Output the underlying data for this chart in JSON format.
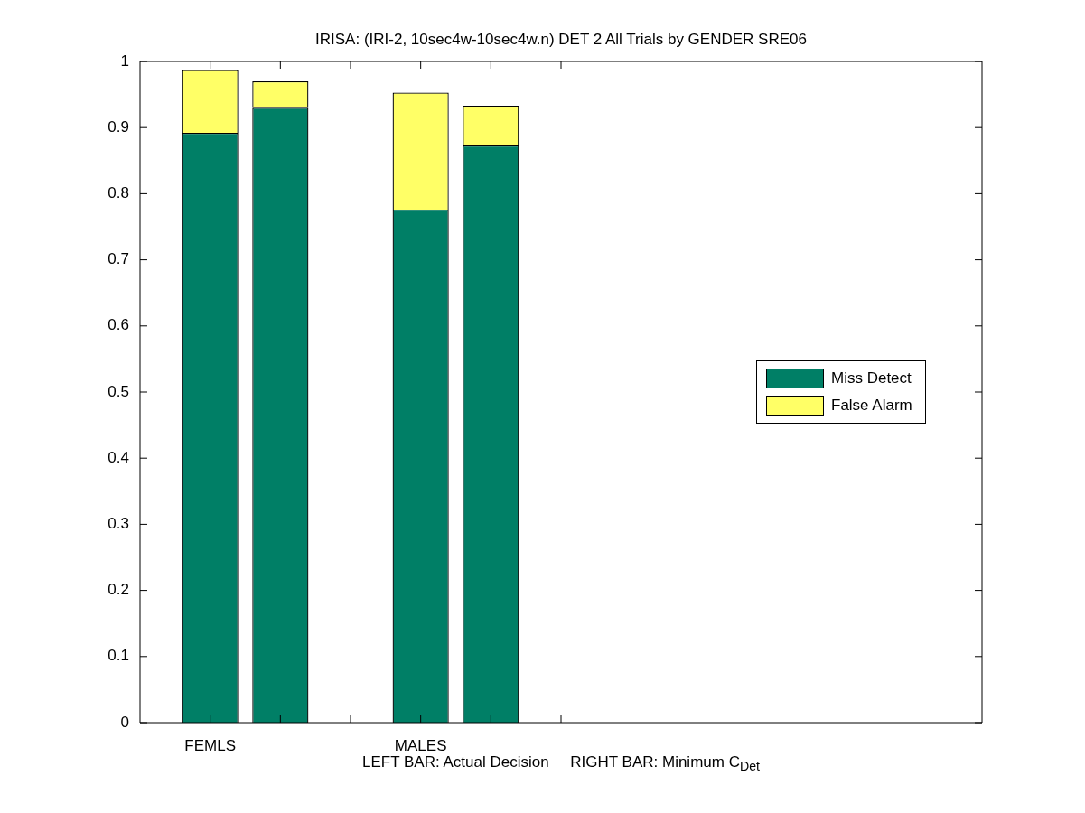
{
  "chart_data": {
    "type": "bar",
    "title": "IRISA: (IRI-2, 10sec4w-10sec4w.n) DET 2 All Trials by GENDER SRE06",
    "xlabel": "LEFT BAR: Actual Decision     RIGHT BAR: Minimum C$_{Det}$",
    "categories": [
      "FEMLS",
      null,
      null,
      "MALES",
      null,
      null
    ],
    "stacked": true,
    "series": [
      {
        "name": "Miss Detect",
        "color": "#007f66",
        "values": [
          0.892,
          0.93,
          null,
          0.776,
          0.873,
          null
        ]
      },
      {
        "name": "False Alarm",
        "color": "#ffff66",
        "values": [
          0.095,
          0.04,
          null,
          0.177,
          0.06,
          null
        ]
      }
    ],
    "ylim": [
      0,
      1
    ],
    "yticks": [
      0,
      0.1,
      0.2,
      0.3,
      0.4,
      0.5,
      0.6,
      0.7,
      0.8,
      0.9,
      1
    ],
    "grid": false,
    "legend": "right"
  }
}
